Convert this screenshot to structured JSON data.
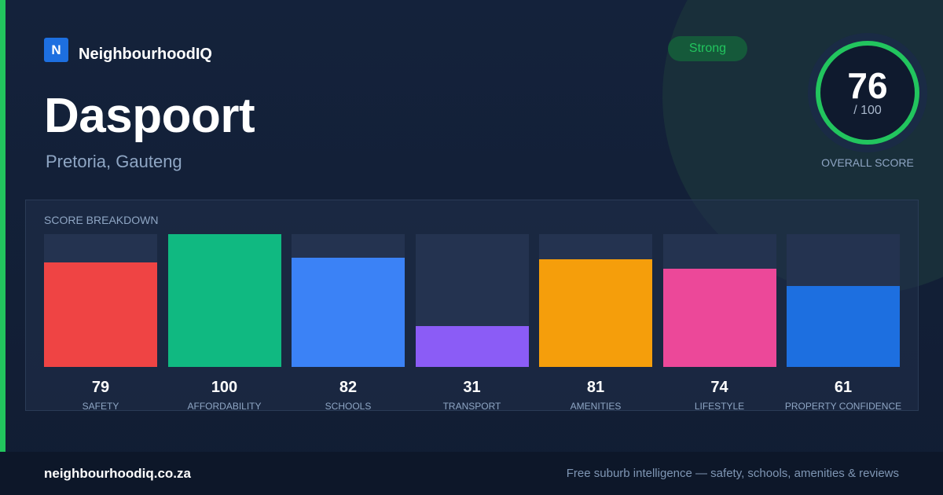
{
  "brand": {
    "logo_letter": "N",
    "name": "NeighbourhoodIQ",
    "color": "#1d6fe0"
  },
  "suburb": {
    "name": "Daspoort",
    "location": "Pretoria, Gauteng"
  },
  "rating": {
    "badge": "Strong",
    "badge_color": "#22c55e"
  },
  "overall": {
    "score": "76",
    "max": "/ 100",
    "fraction": 0.76,
    "label": "OVERALL SCORE",
    "ring_color": "#22c55e"
  },
  "breakdown": {
    "title": "SCORE BREAKDOWN",
    "items": [
      {
        "value": "79",
        "label": "SAFETY",
        "color": "#ef4444"
      },
      {
        "value": "100",
        "label": "AFFORDABILITY",
        "color": "#10b981"
      },
      {
        "value": "82",
        "label": "SCHOOLS",
        "color": "#3b82f6"
      },
      {
        "value": "31",
        "label": "TRANSPORT",
        "color": "#8b5cf6"
      },
      {
        "value": "81",
        "label": "AMENITIES",
        "color": "#f59e0b"
      },
      {
        "value": "74",
        "label": "LIFESTYLE",
        "color": "#ec4899"
      },
      {
        "value": "61",
        "label": "PROPERTY CONFIDENCE",
        "color": "#1d6fe0"
      }
    ]
  },
  "footer": {
    "url": "neighbourhoodiq.co.za",
    "tagline": "Free suburb intelligence — safety, schools, amenities & reviews"
  }
}
